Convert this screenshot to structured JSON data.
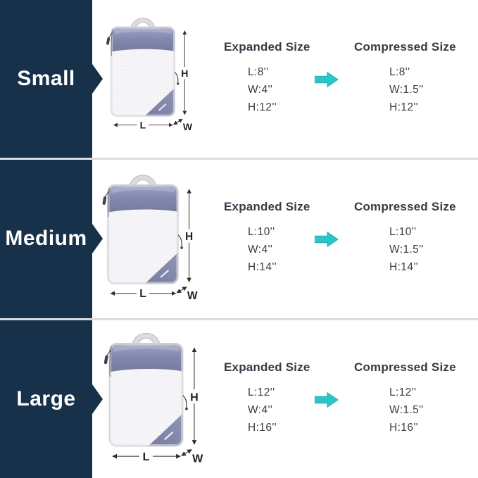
{
  "palette": {
    "sidebar_navy": "#17314a",
    "arrow_teal": "#2cc5c7",
    "divider_gray": "#d9dce0",
    "bag_lavender": "#8287ad"
  },
  "dimension_labels": {
    "height": "H",
    "length": "L",
    "width": "W"
  },
  "rows": [
    {
      "size_label": "Small",
      "expanded": {
        "title": "Expanded Size",
        "length": "L:8''",
        "width": "W:4''",
        "height": "H:12''"
      },
      "compressed": {
        "title": "Compressed Size",
        "length": "L:8''",
        "width": "W:1.5''",
        "height": "H:12''"
      }
    },
    {
      "size_label": "Medium",
      "expanded": {
        "title": "Expanded Size",
        "length": "L:10''",
        "width": "W:4''",
        "height": "H:14''"
      },
      "compressed": {
        "title": "Compressed Size",
        "length": "L:10''",
        "width": "W:1.5''",
        "height": "H:14''"
      }
    },
    {
      "size_label": "Large",
      "expanded": {
        "title": "Expanded Size",
        "length": "L:12''",
        "width": "W:4''",
        "height": "H:16''"
      },
      "compressed": {
        "title": "Compressed Size",
        "length": "L:12''",
        "width": "W:1.5''",
        "height": "H:16''"
      }
    }
  ]
}
